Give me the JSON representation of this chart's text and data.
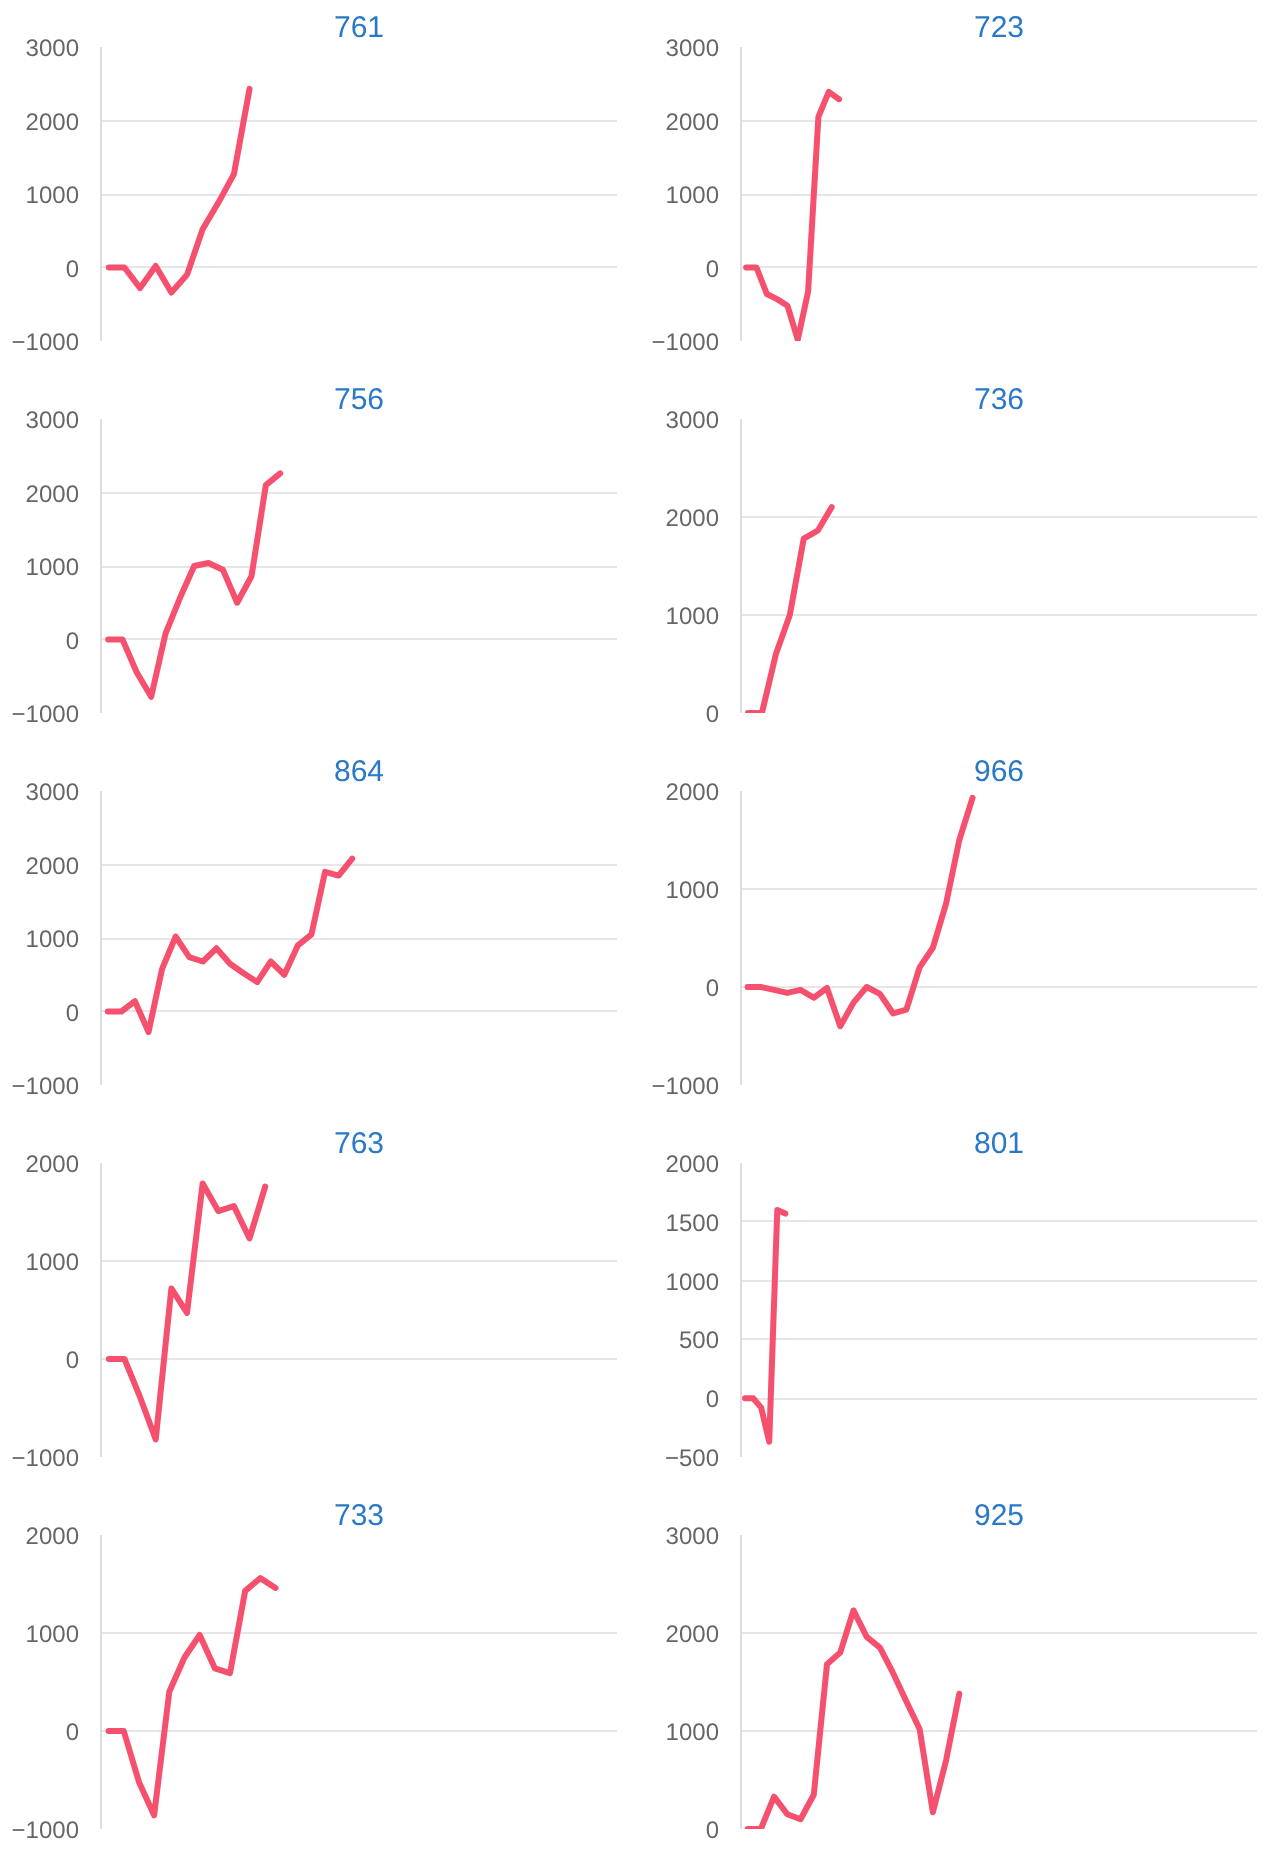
{
  "chart_data": [
    {
      "type": "line",
      "title": "761",
      "color": "#f5506e",
      "ylim": [
        -1000,
        3000
      ],
      "yticks": [
        -1000,
        0,
        1000,
        2000,
        3000
      ],
      "grid": "y",
      "tick_labels": "y",
      "categories": [
        null,
        null,
        null,
        null,
        null,
        null,
        null,
        null,
        null,
        null,
        null,
        null,
        null,
        null,
        null,
        null,
        null,
        null,
        null,
        null,
        null,
        null,
        null,
        null,
        null,
        null,
        null,
        null,
        null,
        null,
        null,
        null,
        null
      ],
      "values": [
        0,
        0,
        -280,
        20,
        -340,
        -100,
        520,
        880,
        1270,
        2430,
        null,
        null,
        null,
        null,
        null,
        null,
        null,
        null,
        null,
        null,
        null,
        null,
        null,
        null,
        null,
        null,
        null,
        null,
        null,
        null,
        null,
        null,
        null
      ]
    },
    {
      "type": "line",
      "title": "723",
      "color": "#f5506e",
      "ylim": [
        -1000,
        3000
      ],
      "yticks": [
        -1000,
        0,
        1000,
        2000,
        3000
      ],
      "grid": "y",
      "tick_labels": "y",
      "categories": [
        null,
        null,
        null,
        null,
        null,
        null,
        null,
        null,
        null,
        null,
        null,
        null,
        null,
        null,
        null,
        null,
        null,
        null,
        null,
        null,
        null,
        null,
        null,
        null,
        null,
        null,
        null,
        null,
        null,
        null,
        null,
        null,
        null,
        null,
        null,
        null,
        null,
        null,
        null,
        null,
        null,
        null,
        null,
        null,
        null,
        null,
        null,
        null,
        null,
        null
      ],
      "values": [
        0,
        0,
        -360,
        -430,
        -520,
        -980,
        -330,
        2050,
        2390,
        2290,
        null,
        null,
        null,
        null,
        null,
        null,
        null,
        null,
        null,
        null,
        null,
        null,
        null,
        null,
        null,
        null,
        null,
        null,
        null,
        null,
        null,
        null,
        null,
        null,
        null,
        null,
        null,
        null,
        null,
        null,
        null,
        null,
        null,
        null,
        null,
        null,
        null,
        null,
        null,
        null
      ]
    },
    {
      "type": "line",
      "title": "756",
      "color": "#f5506e",
      "ylim": [
        -1000,
        3000
      ],
      "yticks": [
        -1000,
        0,
        1000,
        2000,
        3000
      ],
      "grid": "y",
      "tick_labels": "y",
      "categories": [
        null,
        null,
        null,
        null,
        null,
        null,
        null,
        null,
        null,
        null,
        null,
        null,
        null,
        null,
        null,
        null,
        null,
        null,
        null,
        null,
        null,
        null,
        null,
        null,
        null,
        null,
        null,
        null,
        null,
        null,
        null,
        null,
        null,
        null,
        null,
        null
      ],
      "values": [
        0,
        0,
        -450,
        -780,
        80,
        560,
        1000,
        1040,
        950,
        500,
        860,
        2100,
        2260,
        null,
        null,
        null,
        null,
        null,
        null,
        null,
        null,
        null,
        null,
        null,
        null,
        null,
        null,
        null,
        null,
        null,
        null,
        null,
        null,
        null,
        null,
        null
      ]
    },
    {
      "type": "line",
      "title": "736",
      "color": "#f5506e",
      "ylim": [
        0,
        3000
      ],
      "yticks": [
        0,
        1000,
        2000,
        3000
      ],
      "grid": "y",
      "tick_labels": "y",
      "categories": [
        null,
        null,
        null,
        null,
        null,
        null,
        null,
        null,
        null,
        null,
        null,
        null,
        null,
        null,
        null,
        null,
        null,
        null,
        null,
        null,
        null,
        null,
        null,
        null,
        null,
        null,
        null,
        null,
        null,
        null,
        null,
        null,
        null,
        null,
        null,
        null,
        null
      ],
      "values": [
        0,
        0,
        600,
        1000,
        1780,
        1860,
        2100,
        null,
        null,
        null,
        null,
        null,
        null,
        null,
        null,
        null,
        null,
        null,
        null,
        null,
        null,
        null,
        null,
        null,
        null,
        null,
        null,
        null,
        null,
        null,
        null,
        null,
        null,
        null,
        null,
        null,
        null
      ]
    },
    {
      "type": "line",
      "title": "864",
      "color": "#f5506e",
      "ylim": [
        -1000,
        3000
      ],
      "yticks": [
        -1000,
        0,
        1000,
        2000,
        3000
      ],
      "grid": "y",
      "tick_labels": "y",
      "categories": [
        null,
        null,
        null,
        null,
        null,
        null,
        null,
        null,
        null,
        null,
        null,
        null,
        null,
        null,
        null,
        null,
        null,
        null,
        null,
        null,
        null,
        null,
        null,
        null,
        null,
        null,
        null,
        null,
        null,
        null,
        null,
        null,
        null,
        null,
        null,
        null,
        null,
        null
      ],
      "values": [
        0,
        0,
        140,
        -280,
        580,
        1020,
        740,
        680,
        860,
        650,
        520,
        400,
        680,
        500,
        900,
        1050,
        1900,
        1850,
        2080,
        null,
        null,
        null,
        null,
        null,
        null,
        null,
        null,
        null,
        null,
        null,
        null,
        null,
        null,
        null,
        null,
        null,
        null,
        null
      ]
    },
    {
      "type": "line",
      "title": "966",
      "color": "#f5506e",
      "ylim": [
        -1000,
        2000
      ],
      "yticks": [
        -1000,
        0,
        1000,
        2000
      ],
      "grid": "y",
      "tick_labels": "y",
      "categories": [
        null,
        null,
        null,
        null,
        null,
        null,
        null,
        null,
        null,
        null,
        null,
        null,
        null,
        null,
        null,
        null,
        null,
        null,
        null,
        null,
        null,
        null,
        null,
        null,
        null,
        null,
        null,
        null,
        null,
        null,
        null,
        null,
        null,
        null,
        null,
        null,
        null,
        null,
        null
      ],
      "values": [
        0,
        0,
        -30,
        -60,
        -30,
        -110,
        -10,
        -400,
        -160,
        0,
        -70,
        -270,
        -230,
        200,
        400,
        850,
        1500,
        1930,
        null,
        null,
        null,
        null,
        null,
        null,
        null,
        null,
        null,
        null,
        null,
        null,
        null,
        null,
        null,
        null,
        null,
        null,
        null,
        null,
        null
      ]
    },
    {
      "type": "line",
      "title": "763",
      "color": "#f5506e",
      "ylim": [
        -1000,
        2000
      ],
      "yticks": [
        -1000,
        0,
        1000,
        2000
      ],
      "grid": "y",
      "tick_labels": "y",
      "categories": [
        null,
        null,
        null,
        null,
        null,
        null,
        null,
        null,
        null,
        null,
        null,
        null,
        null,
        null,
        null,
        null,
        null,
        null,
        null,
        null,
        null,
        null,
        null,
        null,
        null,
        null,
        null,
        null,
        null,
        null,
        null,
        null,
        null
      ],
      "values": [
        0,
        0,
        -390,
        -820,
        720,
        470,
        1790,
        1510,
        1560,
        1230,
        1760,
        null,
        null,
        null,
        null,
        null,
        null,
        null,
        null,
        null,
        null,
        null,
        null,
        null,
        null,
        null,
        null,
        null,
        null,
        null,
        null,
        null,
        null
      ]
    },
    {
      "type": "line",
      "title": "801",
      "color": "#f5506e",
      "ylim": [
        -500,
        2000
      ],
      "yticks": [
        -500,
        0,
        500,
        1000,
        1500,
        2000
      ],
      "grid": "y",
      "tick_labels": "y",
      "categories": [
        null,
        null,
        null,
        null,
        null,
        null,
        null,
        null,
        null,
        null,
        null,
        null,
        null,
        null,
        null,
        null,
        null,
        null,
        null,
        null,
        null,
        null,
        null,
        null,
        null,
        null,
        null,
        null,
        null,
        null,
        null,
        null,
        null,
        null,
        null,
        null,
        null,
        null,
        null,
        null,
        null,
        null,
        null,
        null,
        null,
        null,
        null,
        null,
        null,
        null,
        null,
        null,
        null,
        null,
        null,
        null,
        null,
        null,
        null,
        null,
        null,
        null,
        null,
        null
      ],
      "values": [
        0,
        0,
        -80,
        -370,
        1600,
        1570,
        null,
        null,
        null,
        null,
        null,
        null,
        null,
        null,
        null,
        null,
        null,
        null,
        null,
        null,
        null,
        null,
        null,
        null,
        null,
        null,
        null,
        null,
        null,
        null,
        null,
        null,
        null,
        null,
        null,
        null,
        null,
        null,
        null,
        null,
        null,
        null,
        null,
        null,
        null,
        null,
        null,
        null,
        null,
        null,
        null,
        null,
        null,
        null,
        null,
        null,
        null,
        null,
        null,
        null,
        null,
        null,
        null,
        null
      ]
    },
    {
      "type": "line",
      "title": "733",
      "color": "#f5506e",
      "ylim": [
        -1000,
        2000
      ],
      "yticks": [
        -1000,
        0,
        1000,
        2000
      ],
      "grid": "y",
      "tick_labels": "y",
      "categories": [
        null,
        null,
        null,
        null,
        null,
        null,
        null,
        null,
        null,
        null,
        null,
        null,
        null,
        null,
        null,
        null,
        null,
        null,
        null,
        null,
        null,
        null,
        null,
        null,
        null,
        null,
        null,
        null,
        null,
        null,
        null,
        null,
        null,
        null
      ],
      "values": [
        0,
        0,
        -520,
        -860,
        400,
        750,
        980,
        640,
        590,
        1430,
        1560,
        1460,
        null,
        null,
        null,
        null,
        null,
        null,
        null,
        null,
        null,
        null,
        null,
        null,
        null,
        null,
        null,
        null,
        null,
        null,
        null,
        null,
        null,
        null
      ]
    },
    {
      "type": "line",
      "title": "925",
      "color": "#f5506e",
      "ylim": [
        0,
        3000
      ],
      "yticks": [
        0,
        1000,
        2000,
        3000
      ],
      "grid": "y",
      "tick_labels": "y",
      "categories": [
        null,
        null,
        null,
        null,
        null,
        null,
        null,
        null,
        null,
        null,
        null,
        null,
        null,
        null,
        null,
        null,
        null,
        null,
        null,
        null,
        null,
        null,
        null,
        null,
        null,
        null,
        null,
        null,
        null,
        null,
        null,
        null,
        null,
        null,
        null,
        null,
        null,
        null,
        null
      ],
      "values": [
        0,
        0,
        330,
        150,
        100,
        350,
        1680,
        1800,
        2230,
        1960,
        1850,
        1590,
        1300,
        1020,
        170,
        700,
        1380,
        null,
        null,
        null,
        null,
        null,
        null,
        null,
        null,
        null,
        null,
        null,
        null,
        null,
        null,
        null,
        null,
        null,
        null,
        null,
        null,
        null,
        null
      ]
    }
  ]
}
